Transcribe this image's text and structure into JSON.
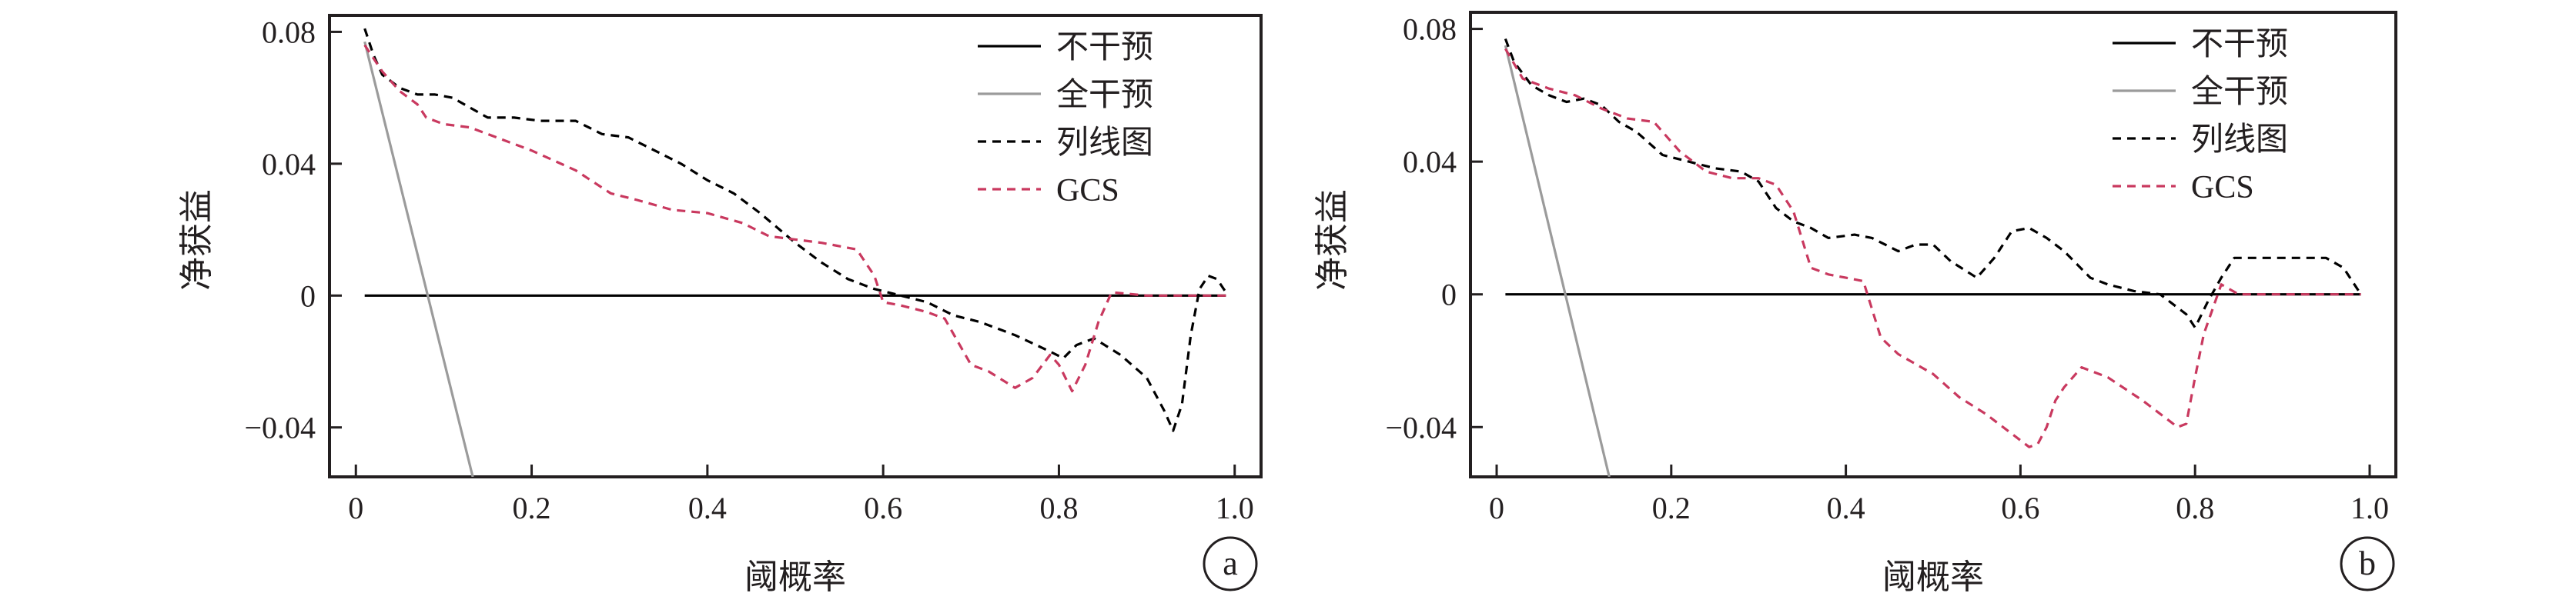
{
  "chart_data": [
    {
      "type": "line",
      "panel_label": "a",
      "xlabel": "阈概率",
      "ylabel": "净获益",
      "xlim": [
        -0.03,
        1.03
      ],
      "ylim": [
        -0.055,
        0.085
      ],
      "xticks": [
        0,
        0.2,
        0.4,
        0.6,
        0.8,
        1.0
      ],
      "xtick_labels": [
        "0",
        "0.2",
        "0.4",
        "0.6",
        "0.8",
        "1.0"
      ],
      "yticks": [
        0.08,
        0.04,
        0,
        -0.04
      ],
      "ytick_labels": [
        "0.08",
        "0.04",
        "0",
        "−0.04"
      ],
      "legend_position": "top-right",
      "series": [
        {
          "name": "不干预",
          "color": "#000000",
          "dash": "solid",
          "x": [
            0.01,
            0.99
          ],
          "y": [
            0,
            0
          ]
        },
        {
          "name": "全干预",
          "color": "#9b9b9b",
          "dash": "solid",
          "x": [
            0.01,
            0.133
          ],
          "y": [
            0.077,
            -0.055
          ]
        },
        {
          "name": "列线图",
          "color": "#000000",
          "dash": "dashed",
          "x": [
            0.01,
            0.02,
            0.03,
            0.05,
            0.07,
            0.09,
            0.11,
            0.13,
            0.15,
            0.18,
            0.21,
            0.25,
            0.28,
            0.31,
            0.34,
            0.37,
            0.4,
            0.43,
            0.46,
            0.5,
            0.53,
            0.56,
            0.59,
            0.62,
            0.65,
            0.68,
            0.71,
            0.75,
            0.79,
            0.805,
            0.82,
            0.84,
            0.87,
            0.9,
            0.92,
            0.93,
            0.94,
            0.95,
            0.96,
            0.97,
            0.98,
            0.99
          ],
          "y": [
            0.081,
            0.073,
            0.067,
            0.063,
            0.061,
            0.061,
            0.06,
            0.057,
            0.054,
            0.054,
            0.053,
            0.053,
            0.049,
            0.048,
            0.044,
            0.04,
            0.035,
            0.031,
            0.025,
            0.016,
            0.01,
            0.005,
            0.002,
            0.0,
            -0.002,
            -0.006,
            -0.008,
            -0.012,
            -0.017,
            -0.019,
            -0.015,
            -0.013,
            -0.018,
            -0.025,
            -0.035,
            -0.041,
            -0.033,
            -0.012,
            0.002,
            0.006,
            0.005,
            0.001
          ]
        },
        {
          "name": "GCS",
          "color": "#c9395f",
          "dash": "dashed",
          "x": [
            0.01,
            0.03,
            0.05,
            0.07,
            0.08,
            0.1,
            0.13,
            0.16,
            0.2,
            0.25,
            0.29,
            0.32,
            0.36,
            0.4,
            0.44,
            0.47,
            0.5,
            0.53,
            0.57,
            0.59,
            0.6,
            0.62,
            0.65,
            0.67,
            0.7,
            0.72,
            0.75,
            0.77,
            0.79,
            0.8,
            0.815,
            0.83,
            0.845,
            0.86,
            0.9,
            0.95,
            0.99
          ],
          "y": [
            0.076,
            0.068,
            0.062,
            0.058,
            0.054,
            0.052,
            0.051,
            0.048,
            0.044,
            0.038,
            0.031,
            0.029,
            0.026,
            0.025,
            0.022,
            0.018,
            0.017,
            0.016,
            0.014,
            0.006,
            -0.002,
            -0.003,
            -0.005,
            -0.007,
            -0.021,
            -0.023,
            -0.028,
            -0.025,
            -0.018,
            -0.021,
            -0.029,
            -0.021,
            -0.008,
            0.001,
            0.0,
            0.0,
            0.0
          ]
        }
      ]
    },
    {
      "type": "line",
      "panel_label": "b",
      "xlabel": "阈概率",
      "ylabel": "净获益",
      "xlim": [
        -0.03,
        1.03
      ],
      "ylim": [
        -0.055,
        0.085
      ],
      "xticks": [
        0,
        0.2,
        0.4,
        0.6,
        0.8,
        1.0
      ],
      "xtick_labels": [
        "0",
        "0.2",
        "0.4",
        "0.6",
        "0.8",
        "1.0"
      ],
      "yticks": [
        0.08,
        0.04,
        0,
        -0.04
      ],
      "ytick_labels": [
        "0.08",
        "0.04",
        "0",
        "−0.04"
      ],
      "legend_position": "top-right",
      "series": [
        {
          "name": "不干预",
          "color": "#000000",
          "dash": "solid",
          "x": [
            0.01,
            0.99
          ],
          "y": [
            0,
            0
          ]
        },
        {
          "name": "全干预",
          "color": "#9b9b9b",
          "dash": "solid",
          "x": [
            0.01,
            0.129
          ],
          "y": [
            0.075,
            -0.055
          ]
        },
        {
          "name": "列线图",
          "color": "#000000",
          "dash": "dashed",
          "x": [
            0.01,
            0.02,
            0.04,
            0.06,
            0.08,
            0.1,
            0.12,
            0.14,
            0.16,
            0.19,
            0.22,
            0.25,
            0.28,
            0.3,
            0.32,
            0.34,
            0.36,
            0.38,
            0.41,
            0.43,
            0.46,
            0.48,
            0.5,
            0.52,
            0.55,
            0.57,
            0.59,
            0.61,
            0.63,
            0.65,
            0.68,
            0.7,
            0.73,
            0.76,
            0.79,
            0.8,
            0.815,
            0.83,
            0.845,
            0.86,
            0.9,
            0.95,
            0.97,
            0.99
          ],
          "y": [
            0.077,
            0.07,
            0.063,
            0.06,
            0.058,
            0.059,
            0.057,
            0.052,
            0.049,
            0.042,
            0.04,
            0.038,
            0.037,
            0.034,
            0.026,
            0.022,
            0.02,
            0.017,
            0.018,
            0.017,
            0.013,
            0.015,
            0.015,
            0.01,
            0.005,
            0.011,
            0.019,
            0.02,
            0.017,
            0.013,
            0.005,
            0.003,
            0.001,
            0.0,
            -0.006,
            -0.01,
            -0.002,
            0.005,
            0.011,
            0.011,
            0.011,
            0.011,
            0.008,
            0.0
          ]
        },
        {
          "name": "GCS",
          "color": "#c9395f",
          "dash": "dashed",
          "x": [
            0.01,
            0.03,
            0.06,
            0.09,
            0.12,
            0.15,
            0.18,
            0.21,
            0.24,
            0.27,
            0.3,
            0.32,
            0.34,
            0.36,
            0.38,
            0.4,
            0.42,
            0.44,
            0.46,
            0.5,
            0.53,
            0.56,
            0.59,
            0.61,
            0.62,
            0.63,
            0.64,
            0.65,
            0.67,
            0.7,
            0.74,
            0.77,
            0.78,
            0.79,
            0.8,
            0.81,
            0.83,
            0.85,
            0.9,
            0.95,
            0.99
          ],
          "y": [
            0.074,
            0.065,
            0.062,
            0.06,
            0.056,
            0.053,
            0.052,
            0.043,
            0.037,
            0.035,
            0.035,
            0.033,
            0.025,
            0.008,
            0.006,
            0.005,
            0.004,
            -0.013,
            -0.018,
            -0.024,
            -0.031,
            -0.036,
            -0.042,
            -0.046,
            -0.045,
            -0.04,
            -0.032,
            -0.028,
            -0.022,
            -0.025,
            -0.032,
            -0.038,
            -0.04,
            -0.039,
            -0.025,
            -0.012,
            0.003,
            0.0,
            0.0,
            0.0,
            0.0
          ]
        }
      ]
    }
  ]
}
